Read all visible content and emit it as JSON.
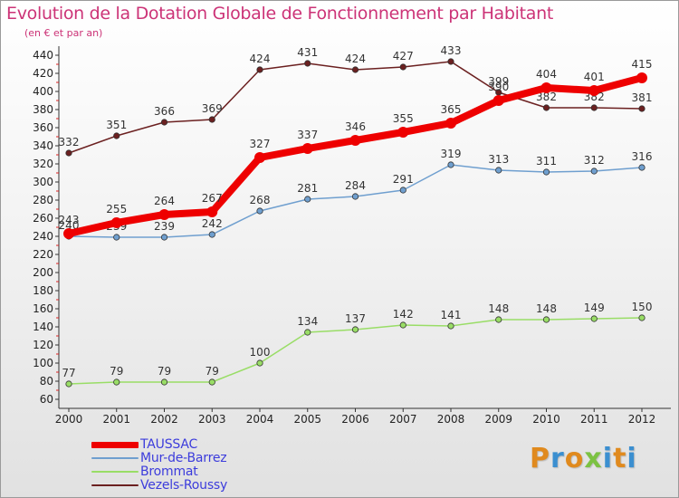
{
  "header": {
    "title": "Evolution de la Dotation Globale de Fonctionnement par Habitant",
    "subtitle": "(en € et par an)"
  },
  "chart_data": {
    "type": "line",
    "title": "Evolution de la Dotation Globale de Fonctionnement par Habitant",
    "subtitle": "(en € et par an)",
    "xlabel": "",
    "ylabel": "",
    "x": [
      "2000",
      "2001",
      "2002",
      "2003",
      "2004",
      "2005",
      "2006",
      "2007",
      "2008",
      "2009",
      "2010",
      "2011",
      "2012"
    ],
    "ylim": [
      60,
      440
    ],
    "yticks": [
      "60",
      "80",
      "100",
      "120",
      "140",
      "160",
      "180",
      "200",
      "220",
      "240",
      "260",
      "280",
      "300",
      "320",
      "340",
      "360",
      "380",
      "400",
      "420",
      "440"
    ],
    "grid": false,
    "legend_position": "bottom-left",
    "series": [
      {
        "name": "Vezels-Roussy",
        "color": "#6b2020",
        "values": [
          332,
          351,
          366,
          369,
          424,
          431,
          424,
          427,
          433,
          399,
          382,
          382,
          381
        ],
        "labels": [
          "332",
          "351",
          "366",
          "369",
          "424",
          "431",
          "424",
          "427",
          "433",
          "399",
          "382",
          "382",
          "381"
        ]
      },
      {
        "name": "Mur-de-Barrez",
        "color": "#6f9fcf",
        "values": [
          240,
          239,
          239,
          242,
          268,
          281,
          284,
          291,
          319,
          313,
          311,
          312,
          316
        ],
        "labels": [
          "240",
          "239",
          "239",
          "242",
          "268",
          "281",
          "284",
          "291",
          "319",
          "313",
          "311",
          "312",
          "316"
        ]
      },
      {
        "name": "Brommat",
        "color": "#99dd66",
        "values": [
          77,
          79,
          79,
          79,
          100,
          134,
          137,
          142,
          141,
          148,
          148,
          149,
          150
        ],
        "labels": [
          "77",
          "79",
          "79",
          "79",
          "100",
          "134",
          "137",
          "142",
          "141",
          "148",
          "148",
          "149",
          "150"
        ]
      },
      {
        "name": "TAUSSAC",
        "color": "#ee0000",
        "values": [
          243,
          255,
          264,
          267,
          327,
          337,
          346,
          355,
          365,
          390,
          404,
          401,
          415
        ],
        "labels": [
          "243",
          "255",
          "264",
          "267",
          "327",
          "337",
          "346",
          "355",
          "365",
          "390",
          "404",
          "401",
          "415"
        ]
      }
    ]
  },
  "legend": {
    "items": [
      {
        "label": "TAUSSAC",
        "color": "#ee0000"
      },
      {
        "label": "Mur-de-Barrez",
        "color": "#6f9fcf"
      },
      {
        "label": "Brommat",
        "color": "#99dd66"
      },
      {
        "label": "Vezels-Roussy",
        "color": "#6b2020"
      }
    ]
  },
  "logo": {
    "letters": [
      "P",
      "r",
      "o",
      "x",
      "i",
      "t",
      "i"
    ],
    "colors": [
      "#e08a1e",
      "#3b8fd0",
      "#e08a1e",
      "#7cc243",
      "#3b8fd0",
      "#e08a1e",
      "#3b8fd0"
    ]
  }
}
